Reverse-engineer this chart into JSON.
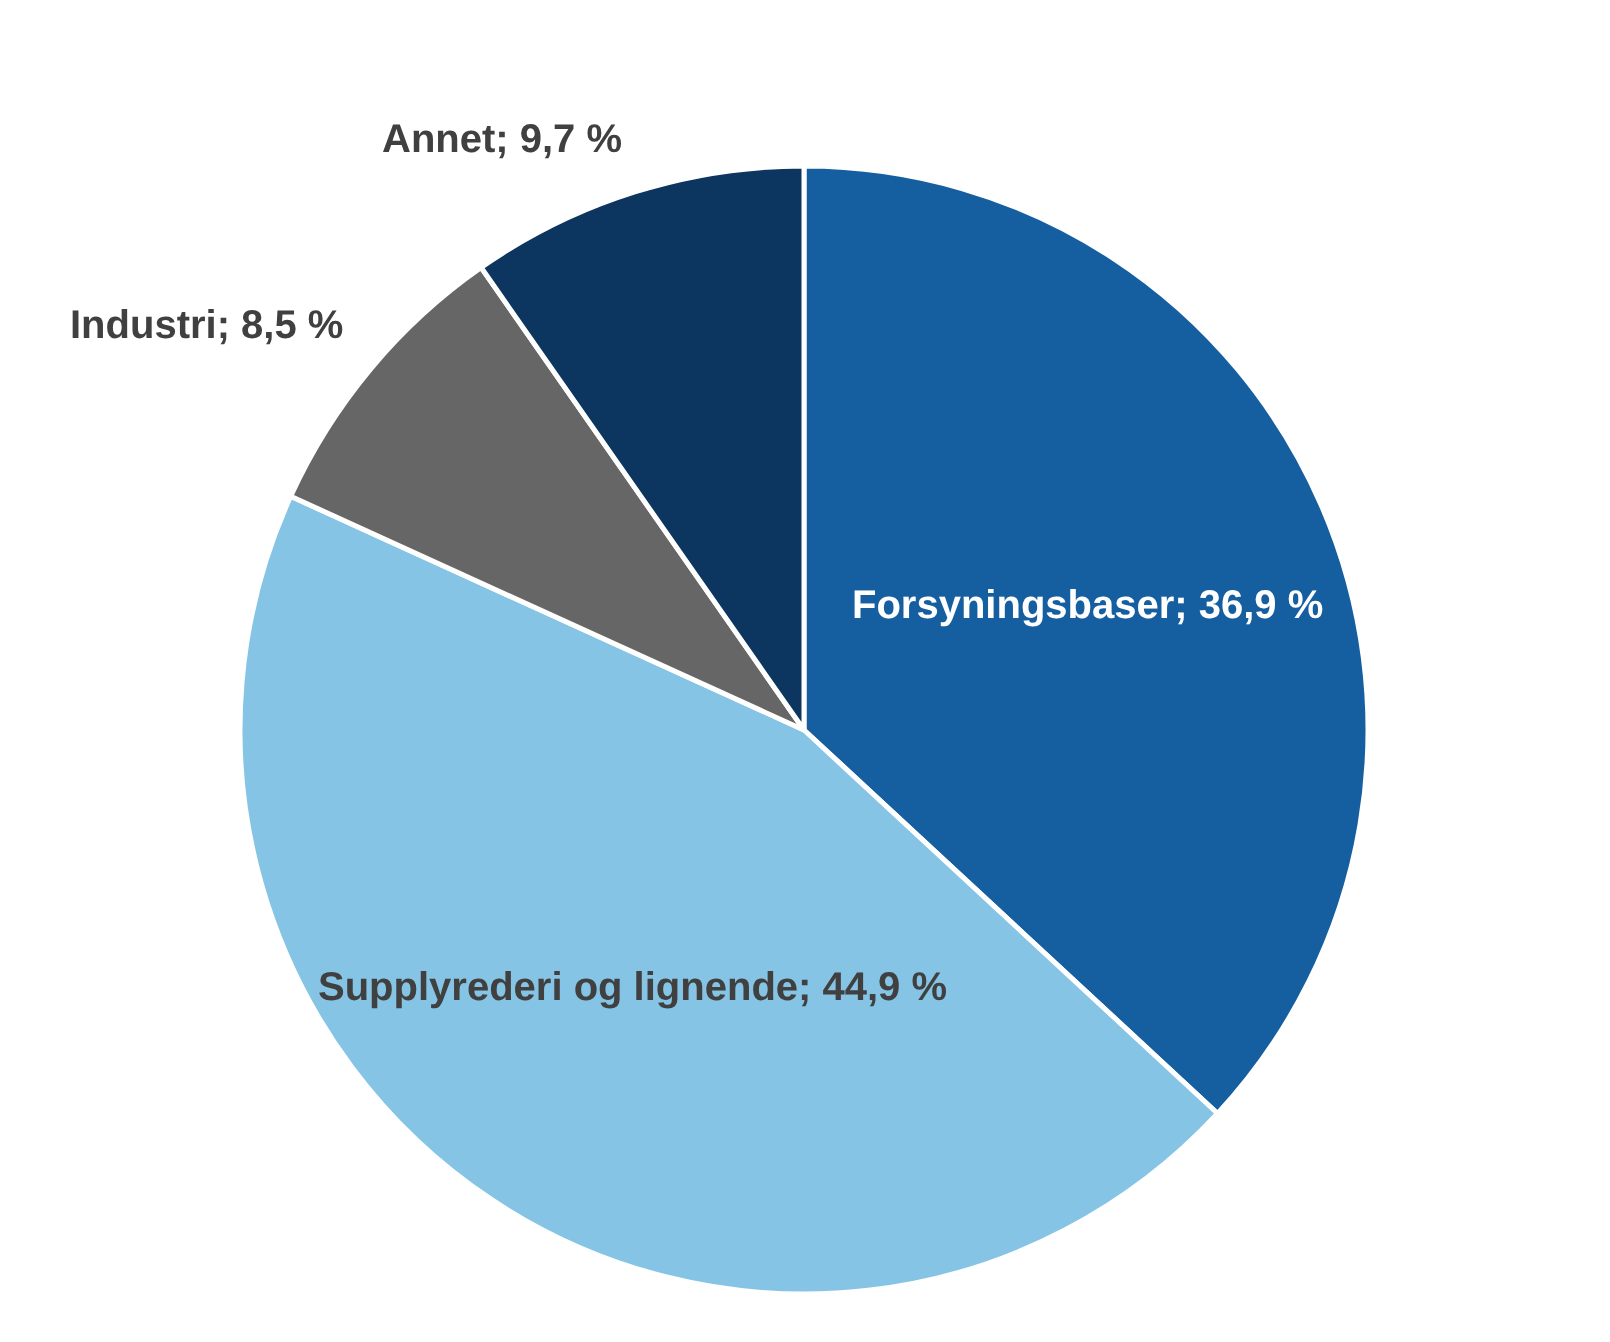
{
  "chart_data": {
    "type": "pie",
    "categories": [
      "Forsyningsbaser",
      "Supplyrederi og lignende",
      "Industri",
      "Annet"
    ],
    "values": [
      36.9,
      44.9,
      8.5,
      9.7
    ],
    "value_labels": [
      "36,9 %",
      "44,9 %",
      "8,5 %",
      "9,7 %"
    ],
    "colors": [
      "#155fa0",
      "#85c4e4",
      "#666666",
      "#0c365f"
    ],
    "legend": false
  }
}
